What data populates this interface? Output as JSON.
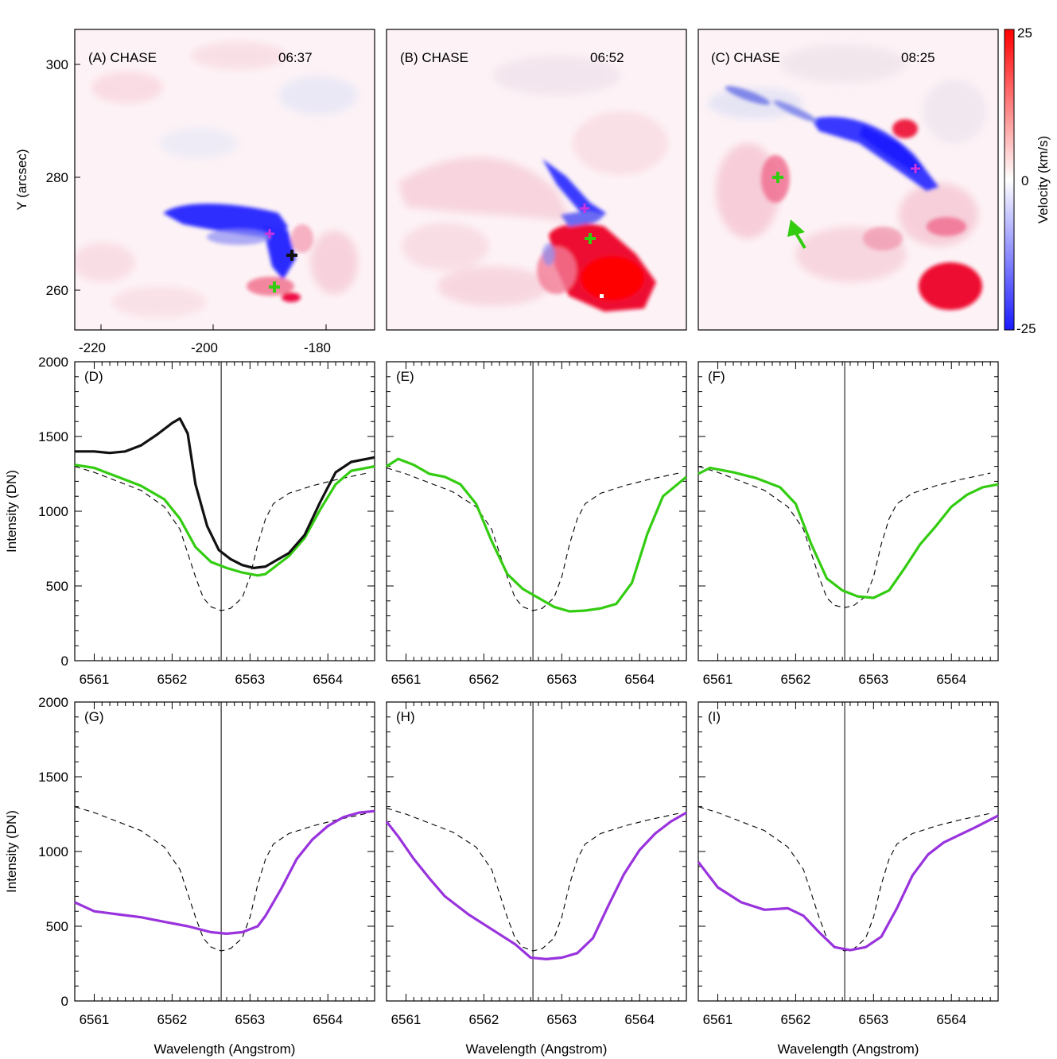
{
  "maps": [
    {
      "label": "(A) CHASE",
      "time": "06:37"
    },
    {
      "label": "(B) CHASE",
      "time": "06:52"
    },
    {
      "label": "(C) CHASE",
      "time": "08:25"
    }
  ],
  "map_axes": {
    "ylabel": "Y (arcsec)",
    "yticks": [
      "300",
      "280",
      "260"
    ],
    "xticks": [
      "-220",
      "-200",
      "-180"
    ]
  },
  "colorbar": {
    "label": "Velocity (km/s)",
    "ticks": [
      "25",
      "0",
      "-25"
    ],
    "colors": {
      "positive": "#ff0000",
      "zero": "#ffffff",
      "negative": "#1a1aff"
    }
  },
  "spectra_axes": {
    "ylabel": "Intensity (DN)",
    "yticks": [
      "2000",
      "1500",
      "1000",
      "500",
      "0"
    ],
    "xticks": [
      "6561",
      "6562",
      "6563",
      "6564"
    ],
    "xlabel": "Wavelength (Angstrom)"
  },
  "colors": {
    "green": "#33cc11",
    "purple": "#9933dd",
    "black": "#111111",
    "magenta": "#cc33dd"
  },
  "chart_data": [
    {
      "type": "line",
      "panel": "(D)",
      "xlim": [
        6560.75,
        6564.6
      ],
      "ylim": [
        0,
        2000
      ],
      "vline": 6562.63,
      "series": [
        {
          "style": "dashed-reference",
          "x": [
            6560.75,
            6561.0,
            6561.3,
            6561.6,
            6561.9,
            6562.1,
            6562.2,
            6562.3,
            6562.4,
            6562.5,
            6562.63,
            6562.75,
            6562.9,
            6563.0,
            6563.1,
            6563.2,
            6563.3,
            6563.5,
            6563.8,
            6564.1,
            6564.5
          ],
          "y": [
            1300,
            1260,
            1200,
            1140,
            1030,
            880,
            720,
            560,
            420,
            360,
            335,
            350,
            420,
            560,
            780,
            950,
            1050,
            1120,
            1170,
            1210,
            1255
          ]
        },
        {
          "color": "green",
          "x": [
            6560.75,
            6561.0,
            6561.3,
            6561.6,
            6561.9,
            6562.1,
            6562.3,
            6562.5,
            6562.7,
            6562.9,
            6563.1,
            6563.2,
            6563.3,
            6563.5,
            6563.7,
            6563.9,
            6564.1,
            6564.3,
            6564.6
          ],
          "y": [
            1310,
            1290,
            1230,
            1170,
            1080,
            950,
            760,
            660,
            620,
            590,
            570,
            580,
            620,
            700,
            820,
            1010,
            1180,
            1270,
            1300
          ]
        },
        {
          "color": "black",
          "x": [
            6560.75,
            6561.0,
            6561.2,
            6561.4,
            6561.6,
            6561.8,
            6562.0,
            6562.1,
            6562.2,
            6562.3,
            6562.45,
            6562.6,
            6562.75,
            6562.9,
            6563.05,
            6563.2,
            6563.3,
            6563.5,
            6563.7,
            6563.9,
            6564.1,
            6564.3,
            6564.6
          ],
          "y": [
            1400,
            1400,
            1390,
            1400,
            1440,
            1510,
            1590,
            1620,
            1520,
            1180,
            900,
            740,
            680,
            640,
            620,
            630,
            660,
            720,
            840,
            1060,
            1260,
            1330,
            1360
          ]
        }
      ]
    },
    {
      "type": "line",
      "panel": "(E)",
      "xlim": [
        6560.75,
        6564.6
      ],
      "ylim": [
        0,
        2000
      ],
      "vline": 6562.63,
      "series": [
        {
          "style": "dashed-reference",
          "x": [
            6560.75,
            6561.0,
            6561.3,
            6561.6,
            6561.9,
            6562.1,
            6562.2,
            6562.3,
            6562.4,
            6562.5,
            6562.63,
            6562.75,
            6562.9,
            6563.0,
            6563.1,
            6563.2,
            6563.3,
            6563.5,
            6563.8,
            6564.1,
            6564.5
          ],
          "y": [
            1290,
            1250,
            1190,
            1130,
            1030,
            880,
            720,
            560,
            420,
            360,
            335,
            350,
            420,
            560,
            780,
            950,
            1050,
            1120,
            1170,
            1210,
            1255
          ]
        },
        {
          "color": "green",
          "x": [
            6560.75,
            6560.9,
            6561.1,
            6561.3,
            6561.5,
            6561.7,
            6561.9,
            6562.1,
            6562.3,
            6562.5,
            6562.7,
            6562.9,
            6563.1,
            6563.3,
            6563.5,
            6563.7,
            6563.9,
            6564.1,
            6564.3,
            6564.6
          ],
          "y": [
            1300,
            1350,
            1310,
            1250,
            1230,
            1180,
            1050,
            800,
            580,
            480,
            420,
            360,
            330,
            335,
            350,
            380,
            520,
            850,
            1100,
            1230
          ]
        }
      ]
    },
    {
      "type": "line",
      "panel": "(F)",
      "xlim": [
        6560.75,
        6564.6
      ],
      "ylim": [
        0,
        2000
      ],
      "vline": 6562.63,
      "series": [
        {
          "style": "dashed-reference",
          "x": [
            6560.75,
            6561.0,
            6561.3,
            6561.6,
            6561.9,
            6562.1,
            6562.2,
            6562.3,
            6562.4,
            6562.5,
            6562.63,
            6562.75,
            6562.9,
            6563.0,
            6563.1,
            6563.2,
            6563.3,
            6563.5,
            6563.8,
            6564.1,
            6564.5
          ],
          "y": [
            1300,
            1260,
            1200,
            1140,
            1030,
            880,
            720,
            560,
            420,
            370,
            355,
            370,
            430,
            560,
            780,
            950,
            1050,
            1120,
            1170,
            1210,
            1255
          ]
        },
        {
          "color": "green",
          "x": [
            6560.75,
            6560.9,
            6561.2,
            6561.5,
            6561.8,
            6562.0,
            6562.2,
            6562.4,
            6562.6,
            6562.8,
            6563.0,
            6563.2,
            6563.4,
            6563.6,
            6563.8,
            6564.0,
            6564.2,
            6564.4,
            6564.6
          ],
          "y": [
            1250,
            1290,
            1260,
            1220,
            1160,
            1050,
            780,
            550,
            470,
            430,
            420,
            470,
            620,
            780,
            900,
            1030,
            1110,
            1160,
            1180
          ]
        }
      ]
    },
    {
      "type": "line",
      "panel": "(G)",
      "xlim": [
        6560.75,
        6564.6
      ],
      "ylim": [
        0,
        2000
      ],
      "vline": 6562.63,
      "series": [
        {
          "style": "dashed-reference",
          "x": [
            6560.75,
            6561.0,
            6561.3,
            6561.6,
            6561.9,
            6562.1,
            6562.2,
            6562.3,
            6562.4,
            6562.5,
            6562.63,
            6562.75,
            6562.9,
            6563.0,
            6563.1,
            6563.2,
            6563.3,
            6563.5,
            6563.8,
            6564.1,
            6564.5
          ],
          "y": [
            1300,
            1260,
            1200,
            1140,
            1030,
            880,
            720,
            560,
            420,
            360,
            335,
            350,
            420,
            560,
            780,
            950,
            1050,
            1120,
            1170,
            1210,
            1255
          ]
        },
        {
          "color": "purple",
          "x": [
            6560.75,
            6561.0,
            6561.3,
            6561.6,
            6561.9,
            6562.2,
            6562.5,
            6562.7,
            6562.9,
            6563.1,
            6563.2,
            6563.4,
            6563.6,
            6563.8,
            6564.0,
            6564.2,
            6564.4,
            6564.6
          ],
          "y": [
            660,
            600,
            580,
            560,
            530,
            500,
            460,
            450,
            460,
            500,
            570,
            750,
            950,
            1080,
            1170,
            1230,
            1260,
            1270
          ]
        }
      ]
    },
    {
      "type": "line",
      "panel": "(H)",
      "xlim": [
        6560.75,
        6564.6
      ],
      "ylim": [
        0,
        2000
      ],
      "vline": 6562.63,
      "series": [
        {
          "style": "dashed-reference",
          "x": [
            6560.75,
            6561.0,
            6561.3,
            6561.6,
            6561.9,
            6562.1,
            6562.2,
            6562.3,
            6562.4,
            6562.5,
            6562.63,
            6562.75,
            6562.9,
            6563.0,
            6563.1,
            6563.2,
            6563.3,
            6563.5,
            6563.8,
            6564.1,
            6564.5
          ],
          "y": [
            1290,
            1250,
            1190,
            1130,
            1030,
            880,
            720,
            560,
            420,
            360,
            335,
            350,
            420,
            560,
            780,
            950,
            1050,
            1120,
            1170,
            1210,
            1255
          ]
        },
        {
          "color": "purple",
          "x": [
            6560.75,
            6560.9,
            6561.1,
            6561.3,
            6561.5,
            6561.8,
            6562.1,
            6562.4,
            6562.6,
            6562.8,
            6563.0,
            6563.2,
            6563.4,
            6563.6,
            6563.8,
            6564.0,
            6564.2,
            6564.4,
            6564.6
          ],
          "y": [
            1200,
            1100,
            950,
            820,
            700,
            580,
            480,
            380,
            290,
            280,
            290,
            320,
            420,
            640,
            850,
            1010,
            1120,
            1200,
            1260
          ]
        }
      ]
    },
    {
      "type": "line",
      "panel": "(I)",
      "xlim": [
        6560.75,
        6564.6
      ],
      "ylim": [
        0,
        2000
      ],
      "vline": 6562.63,
      "series": [
        {
          "style": "dashed-reference",
          "x": [
            6560.75,
            6561.0,
            6561.3,
            6561.6,
            6561.9,
            6562.1,
            6562.2,
            6562.3,
            6562.4,
            6562.5,
            6562.63,
            6562.75,
            6562.9,
            6563.0,
            6563.1,
            6563.2,
            6563.3,
            6563.5,
            6563.8,
            6564.1,
            6564.5
          ],
          "y": [
            1300,
            1260,
            1200,
            1140,
            1030,
            880,
            720,
            560,
            420,
            360,
            335,
            350,
            420,
            560,
            780,
            950,
            1050,
            1120,
            1170,
            1210,
            1255
          ]
        },
        {
          "color": "purple",
          "x": [
            6560.75,
            6561.0,
            6561.3,
            6561.6,
            6561.9,
            6562.1,
            6562.3,
            6562.5,
            6562.7,
            6562.9,
            6563.1,
            6563.3,
            6563.5,
            6563.7,
            6563.9,
            6564.1,
            6564.3,
            6564.6
          ],
          "y": [
            930,
            760,
            660,
            610,
            620,
            570,
            460,
            360,
            340,
            360,
            430,
            620,
            840,
            980,
            1060,
            1110,
            1160,
            1240
          ]
        }
      ]
    }
  ]
}
